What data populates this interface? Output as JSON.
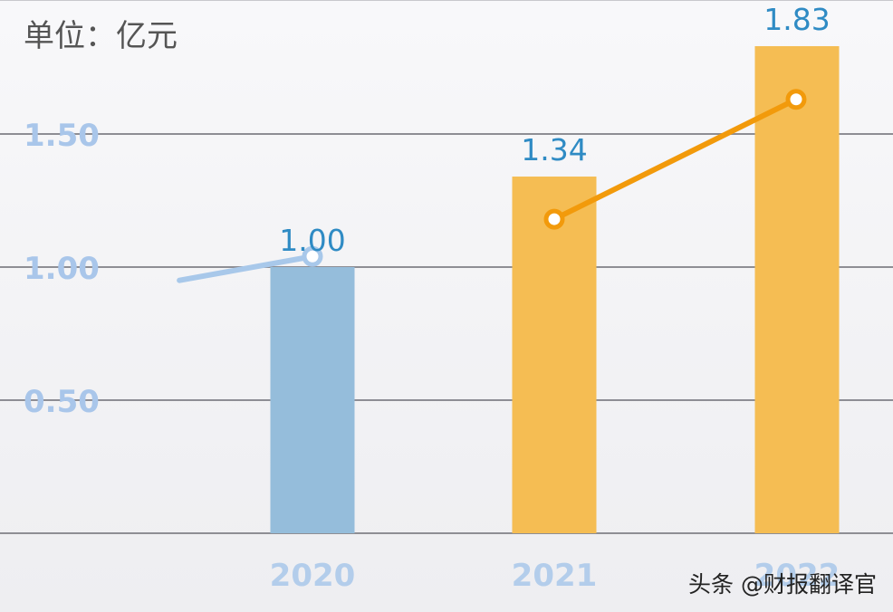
{
  "header": {
    "unit_label": "单位：亿元"
  },
  "watermark": "头条 @财报翻译官",
  "chart_data": {
    "type": "bar",
    "ylabel": "单位：亿元",
    "ylim": [
      0.0,
      2.0
    ],
    "yticks": [
      "0.50",
      "1.00",
      "1.50"
    ],
    "ytick_values": [
      0.5,
      1.0,
      1.5
    ],
    "categories": [
      "2020",
      "2021",
      "2022"
    ],
    "series": [
      {
        "values": [
          1.0,
          1.34,
          1.83
        ],
        "colors": [
          "#95bddb",
          "#f5bd53",
          "#f5bd53"
        ],
        "labels": [
          "1.00",
          "1.34",
          "1.83"
        ]
      },
      {
        "type": "line",
        "points": [
          {
            "x": 2019.45,
            "y": 0.95,
            "color": "#a8c8ea"
          },
          {
            "x": 2020.0,
            "y": 1.04,
            "color": "#a8c8ea"
          },
          {
            "x": 2021.0,
            "y": 1.18,
            "color": "#f29a0b"
          },
          {
            "x": 2022.0,
            "y": 1.63,
            "color": "#f29a0b"
          }
        ]
      }
    ],
    "grid": true,
    "gridline_values": [
      0.0,
      0.5,
      1.0,
      1.5
    ],
    "colors": {
      "grid": "#8e8e94",
      "bar_2020": "#95bddb",
      "bar_other": "#f5bd53",
      "line_early": "#a8c8ea",
      "line_late": "#f29a0b"
    }
  }
}
